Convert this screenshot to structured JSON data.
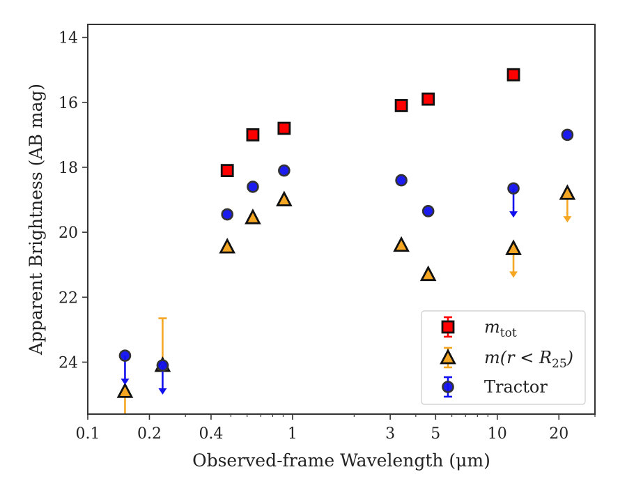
{
  "chart_data": {
    "type": "scatter",
    "xlabel": "Observed-frame Wavelength (μm)",
    "ylabel": "Apparent Brightness (AB mag)",
    "x_scale": "log",
    "xlim": [
      0.1,
      30
    ],
    "ylim": [
      25.6,
      13.6
    ],
    "y_inverted": true,
    "grid": false,
    "legend_position": "lower-right",
    "x_ticks": [
      {
        "value": 0.1,
        "label": "0.1"
      },
      {
        "value": 0.2,
        "label": "0.2"
      },
      {
        "value": 0.4,
        "label": "0.4"
      },
      {
        "value": 1,
        "label": "1"
      },
      {
        "value": 3,
        "label": "3"
      },
      {
        "value": 5,
        "label": "5"
      },
      {
        "value": 10,
        "label": "10"
      },
      {
        "value": 20,
        "label": "20"
      }
    ],
    "y_ticks": [
      {
        "value": 14,
        "label": "14"
      },
      {
        "value": 16,
        "label": "16"
      },
      {
        "value": 18,
        "label": "18"
      },
      {
        "value": 20,
        "label": "20"
      },
      {
        "value": 22,
        "label": "22"
      },
      {
        "value": 24,
        "label": "24"
      }
    ],
    "series": [
      {
        "name": "m_tot",
        "legend_main": "m",
        "legend_sub": "tot",
        "marker": "square",
        "color": "#ff0000",
        "points": [
          {
            "x": 0.48,
            "y": 18.1
          },
          {
            "x": 0.64,
            "y": 17.0
          },
          {
            "x": 0.91,
            "y": 16.8
          },
          {
            "x": 3.4,
            "y": 16.1
          },
          {
            "x": 4.6,
            "y": 15.9
          },
          {
            "x": 12.0,
            "y": 15.15
          }
        ]
      },
      {
        "name": "m(r < R_25)",
        "legend_main": "m(r < R",
        "legend_sub": "25",
        "legend_tail": ")",
        "marker": "triangle",
        "color": "#f5a623",
        "points": [
          {
            "x": 0.152,
            "y": 24.9,
            "upper_limit": true,
            "arrow_to": 25.8
          },
          {
            "x": 0.232,
            "y": 24.1,
            "err_up": 1.45,
            "err_down": 0.0
          },
          {
            "x": 0.48,
            "y": 20.45
          },
          {
            "x": 0.64,
            "y": 19.55
          },
          {
            "x": 0.91,
            "y": 19.0
          },
          {
            "x": 3.4,
            "y": 20.4
          },
          {
            "x": 4.6,
            "y": 21.3
          },
          {
            "x": 12.0,
            "y": 20.5,
            "upper_limit": true,
            "arrow_to": 21.4
          },
          {
            "x": 22.0,
            "y": 18.8,
            "upper_limit": true,
            "arrow_to": 19.7
          }
        ]
      },
      {
        "name": "Tractor",
        "legend_main": "Tractor",
        "marker": "circle",
        "color": "#1010ee",
        "points": [
          {
            "x": 0.152,
            "y": 23.8,
            "upper_limit": true,
            "arrow_to": 24.7
          },
          {
            "x": 0.232,
            "y": 24.1,
            "upper_limit": true,
            "arrow_to": 25.0
          },
          {
            "x": 0.48,
            "y": 19.45
          },
          {
            "x": 0.64,
            "y": 18.6
          },
          {
            "x": 0.91,
            "y": 18.1
          },
          {
            "x": 3.4,
            "y": 18.4
          },
          {
            "x": 4.6,
            "y": 19.35
          },
          {
            "x": 12.0,
            "y": 18.65,
            "upper_limit": true,
            "arrow_to": 19.55
          },
          {
            "x": 22.0,
            "y": 17.0
          }
        ]
      }
    ]
  }
}
